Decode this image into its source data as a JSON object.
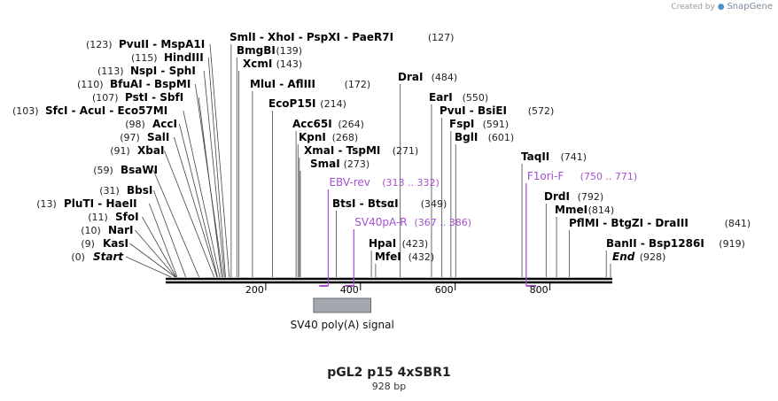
{
  "credit": {
    "prefix": "Created by",
    "brand": "SnapGene"
  },
  "plasmid": {
    "name": "pGL2 p15 4xSBR1",
    "size_label": "928 bp",
    "length": 928
  },
  "ruler": {
    "ticks": [
      "200",
      "400",
      "600",
      "800"
    ]
  },
  "sites": [
    {
      "id": "start",
      "pos": 0,
      "label": "Start",
      "pos_label": "(0)",
      "italic": true
    },
    {
      "id": "kasi",
      "pos": 9,
      "label": "KasI",
      "pos_label": "(9)"
    },
    {
      "id": "nari",
      "pos": 10,
      "label": "NarI",
      "pos_label": "(10)"
    },
    {
      "id": "sfoi",
      "pos": 11,
      "label": "SfoI",
      "pos_label": "(11)"
    },
    {
      "id": "pluti",
      "pos": 13,
      "label": "PluTI  - HaeII",
      "pos_label": "(13)"
    },
    {
      "id": "bbsi",
      "pos": 31,
      "label": "BbsI",
      "pos_label": "(31)"
    },
    {
      "id": "bsawi",
      "pos": 59,
      "label": "BsaWI",
      "pos_label": "(59)"
    },
    {
      "id": "xbai",
      "pos": 91,
      "label": "XbaI",
      "pos_label": "(91)"
    },
    {
      "id": "sali",
      "pos": 97,
      "label": "SalI",
      "pos_label": "(97)"
    },
    {
      "id": "acci",
      "pos": 98,
      "label": "AccI",
      "pos_label": "(98)"
    },
    {
      "id": "sfci",
      "pos": 103,
      "label": "SfcI  - AcuI  - Eco57MI",
      "pos_label": "(103)"
    },
    {
      "id": "psti",
      "pos": 107,
      "label": "PstI  - SbfI",
      "pos_label": "(107)"
    },
    {
      "id": "bfuai",
      "pos": 110,
      "label": "BfuAI  - BspMI",
      "pos_label": "(110)"
    },
    {
      "id": "nspi",
      "pos": 113,
      "label": "NspI  - SphI",
      "pos_label": "(113)"
    },
    {
      "id": "hindiii",
      "pos": 115,
      "label": "HindIII",
      "pos_label": "(115)"
    },
    {
      "id": "pvuii",
      "pos": 123,
      "label": "PvuII  - MspA1I",
      "pos_label": "(123)"
    },
    {
      "id": "smli",
      "pos": 127,
      "label": "SmlI  - XhoI  - PspXI  - PaeR7I",
      "pos_label": "(127)"
    },
    {
      "id": "bmgbi",
      "pos": 139,
      "label": "BmgBI",
      "pos_label": "(139)"
    },
    {
      "id": "xcmi",
      "pos": 143,
      "label": "XcmI",
      "pos_label": "(143)"
    },
    {
      "id": "mlui",
      "pos": 172,
      "label": "MluI  - AflIII",
      "pos_label": "(172)"
    },
    {
      "id": "ecop15i",
      "pos": 214,
      "label": "EcoP15I",
      "pos_label": "(214)"
    },
    {
      "id": "acc65i",
      "pos": 264,
      "label": "Acc65I",
      "pos_label": "(264)"
    },
    {
      "id": "kpni",
      "pos": 268,
      "label": "KpnI",
      "pos_label": "(268)"
    },
    {
      "id": "xmai",
      "pos": 271,
      "label": "XmaI  - TspMI",
      "pos_label": "(271)"
    },
    {
      "id": "smai",
      "pos": 273,
      "label": "SmaI",
      "pos_label": "(273)"
    },
    {
      "id": "btsi",
      "pos": 349,
      "label": "BtsI  - BtsαI",
      "pos_label": "(349)"
    },
    {
      "id": "hpai",
      "pos": 423,
      "label": "HpaI",
      "pos_label": "(423)"
    },
    {
      "id": "mfei",
      "pos": 432,
      "label": "MfeI",
      "pos_label": "(432)"
    },
    {
      "id": "drai",
      "pos": 484,
      "label": "DraI",
      "pos_label": "(484)"
    },
    {
      "id": "eari",
      "pos": 550,
      "label": "EarI",
      "pos_label": "(550)"
    },
    {
      "id": "pvui",
      "pos": 572,
      "label": "PvuI  - BsiEI",
      "pos_label": "(572)"
    },
    {
      "id": "fspi",
      "pos": 591,
      "label": "FspI",
      "pos_label": "(591)"
    },
    {
      "id": "bgli",
      "pos": 601,
      "label": "BglI",
      "pos_label": "(601)"
    },
    {
      "id": "taqii",
      "pos": 741,
      "label": "TaqII",
      "pos_label": "(741)"
    },
    {
      "id": "drdi",
      "pos": 792,
      "label": "DrdI",
      "pos_label": "(792)"
    },
    {
      "id": "mmei",
      "pos": 814,
      "label": "MmeI",
      "pos_label": "(814)"
    },
    {
      "id": "pflmi",
      "pos": 841,
      "label": "PflMI  - BtgZI  - DraIII",
      "pos_label": "(841)"
    },
    {
      "id": "banii",
      "pos": 919,
      "label": "BanII  - Bsp1286I",
      "pos_label": "(919)"
    },
    {
      "id": "end",
      "pos": 928,
      "label": "End",
      "pos_label": "(928)",
      "italic": true
    }
  ],
  "primers": [
    {
      "id": "ebv-rev",
      "label": "EBV-rev",
      "range_label": "(313 .. 332)",
      "start": 313,
      "end": 332,
      "direction": "reverse"
    },
    {
      "id": "sv40pa-r",
      "label": "SV40pA-R",
      "range_label": "(367 .. 386)",
      "start": 367,
      "end": 386,
      "direction": "reverse"
    },
    {
      "id": "f1ori-f",
      "label": "F1ori-F",
      "range_label": "(750 .. 771)",
      "start": 750,
      "end": 771,
      "direction": "forward"
    }
  ],
  "features": [
    {
      "id": "sv40-polya",
      "label": "SV40 poly(A) signal",
      "start": 301,
      "end": 422
    }
  ],
  "colors": {
    "primer": "#a64fd1",
    "feature_fill": "#a3a8b0",
    "backbone": "#000000",
    "site_line": "#444444"
  }
}
